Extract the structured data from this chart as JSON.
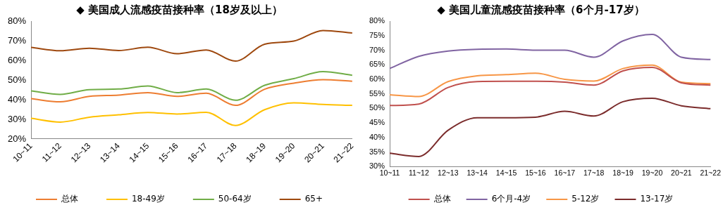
{
  "chart_data": [
    {
      "type": "line",
      "title": "◆ 美国成人流感疫苗接种率（18岁及以上）",
      "categories": [
        "10~11",
        "11~12",
        "12~13",
        "13~14",
        "14~15",
        "15~16",
        "16~17",
        "17~18",
        "18~19",
        "19~20",
        "20~21",
        "21~22"
      ],
      "series": [
        {
          "name": "总体",
          "color": "#ed7d31",
          "values": [
            40.5,
            38.9,
            41.7,
            42.3,
            43.6,
            41.7,
            43.3,
            37.1,
            45.3,
            48.4,
            50.2,
            49.4
          ]
        },
        {
          "name": "18-49岁",
          "color": "#ffc000",
          "values": [
            30.5,
            28.6,
            31.1,
            32.3,
            33.5,
            32.7,
            33.6,
            26.9,
            34.9,
            38.4,
            37.6,
            37.1
          ]
        },
        {
          "name": "50-64岁",
          "color": "#70ad47",
          "values": [
            44.5,
            42.7,
            45.1,
            45.4,
            47.0,
            43.6,
            45.4,
            39.7,
            47.3,
            50.7,
            54.3,
            52.4
          ]
        },
        {
          "name": "65+",
          "color": "#9e480e",
          "values": [
            66.6,
            64.9,
            66.2,
            65.0,
            66.7,
            63.4,
            65.3,
            59.6,
            68.2,
            69.8,
            75.2,
            73.9
          ]
        }
      ],
      "ylim": [
        20,
        80
      ],
      "yticks": [
        {
          "value": 20,
          "label": "20%"
        },
        {
          "value": 30,
          "label": "30%"
        },
        {
          "value": 40,
          "label": "40%"
        },
        {
          "value": 50,
          "label": "50%"
        },
        {
          "value": 60,
          "label": "60%"
        },
        {
          "value": 70,
          "label": "70%"
        },
        {
          "value": 80,
          "label": "80%"
        }
      ],
      "grid": false,
      "legend": "bottom",
      "marker": "none",
      "line_style": "solid"
    },
    {
      "type": "line",
      "title": "◆ 美国儿童流感疫苗接种率（6个月-17岁）",
      "categories": [
        "10~11",
        "11~12",
        "12~13",
        "13~14",
        "14~15",
        "15~16",
        "16~17",
        "17~18",
        "18~19",
        "19~20",
        "20~21",
        "21~22"
      ],
      "series": [
        {
          "name": "总体",
          "color": "#c0504d",
          "values": [
            51.0,
            51.5,
            57.2,
            59.2,
            59.3,
            59.3,
            59.0,
            58.0,
            62.9,
            64.1,
            58.8,
            58.0
          ]
        },
        {
          "name": "6个月-4岁",
          "color": "#8064a2",
          "values": [
            63.7,
            67.9,
            69.7,
            70.3,
            70.4,
            70.0,
            70.0,
            67.6,
            73.2,
            75.4,
            67.6,
            66.8
          ]
        },
        {
          "name": "5-12岁",
          "color": "#f79646",
          "values": [
            54.7,
            54.1,
            59.2,
            61.2,
            61.6,
            62.1,
            60.0,
            59.4,
            63.7,
            64.9,
            59.0,
            58.5
          ]
        },
        {
          "name": "13-17岁",
          "color": "#7b2c2c",
          "values": [
            34.6,
            33.5,
            42.5,
            46.8,
            46.8,
            47.0,
            49.0,
            47.4,
            52.3,
            53.5,
            50.9,
            49.9
          ]
        }
      ],
      "ylim": [
        30,
        80
      ],
      "yticks": [
        {
          "value": 30,
          "label": "30%"
        },
        {
          "value": 35,
          "label": "35%"
        },
        {
          "value": 40,
          "label": "40%"
        },
        {
          "value": 45,
          "label": "45%"
        },
        {
          "value": 50,
          "label": "50%"
        },
        {
          "value": 55,
          "label": "55%"
        },
        {
          "value": 60,
          "label": "60%"
        },
        {
          "value": 65,
          "label": "65%"
        },
        {
          "value": 70,
          "label": "70%"
        },
        {
          "value": 75,
          "label": "75%"
        },
        {
          "value": 80,
          "label": "80%"
        }
      ],
      "grid": false,
      "legend": "bottom",
      "marker": "none",
      "line_style": "solid"
    }
  ]
}
